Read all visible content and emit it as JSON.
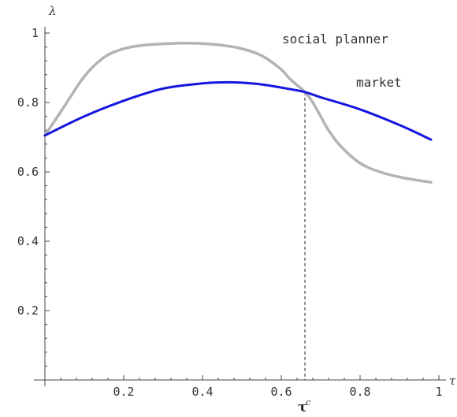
{
  "chart_data": {
    "type": "line",
    "title": "",
    "xlabel": "τ",
    "ylabel": "λ",
    "xlim": [
      0,
      1
    ],
    "ylim": [
      0,
      1
    ],
    "x_ticks": [
      0.2,
      0.4,
      0.6,
      0.8,
      1
    ],
    "x_tick_labels": [
      "0.2",
      "0.4",
      "0.6",
      "0.8",
      "1"
    ],
    "y_ticks": [
      0.2,
      0.4,
      0.6,
      0.8,
      1
    ],
    "y_tick_labels": [
      "0.2",
      "0.4",
      "0.6",
      "0.8",
      "1"
    ],
    "grid": false,
    "series": [
      {
        "name": "social planner",
        "color": "#b3b3b3",
        "x": [
          0,
          0.05,
          0.1,
          0.15,
          0.2,
          0.25,
          0.3,
          0.35,
          0.4,
          0.45,
          0.5,
          0.55,
          0.6,
          0.62,
          0.64,
          0.66,
          0.68,
          0.7,
          0.72,
          0.75,
          0.8,
          0.85,
          0.9,
          0.95,
          0.98
        ],
        "y": [
          0.705,
          0.79,
          0.875,
          0.93,
          0.955,
          0.965,
          0.969,
          0.971,
          0.97,
          0.965,
          0.955,
          0.935,
          0.895,
          0.87,
          0.85,
          0.83,
          0.8,
          0.76,
          0.72,
          0.675,
          0.625,
          0.6,
          0.585,
          0.575,
          0.57
        ]
      },
      {
        "name": "market",
        "color": "#1616e0",
        "x": [
          0,
          0.1,
          0.2,
          0.3,
          0.4,
          0.45,
          0.5,
          0.55,
          0.6,
          0.66,
          0.7,
          0.8,
          0.9,
          0.98
        ],
        "y": [
          0.705,
          0.76,
          0.805,
          0.84,
          0.855,
          0.858,
          0.857,
          0.852,
          0.843,
          0.83,
          0.815,
          0.78,
          0.735,
          0.693
        ]
      }
    ],
    "annotations": [
      {
        "type": "vertical-dashed-line",
        "x": 0.66,
        "label": "τ",
        "label_superscript": "c"
      }
    ]
  }
}
